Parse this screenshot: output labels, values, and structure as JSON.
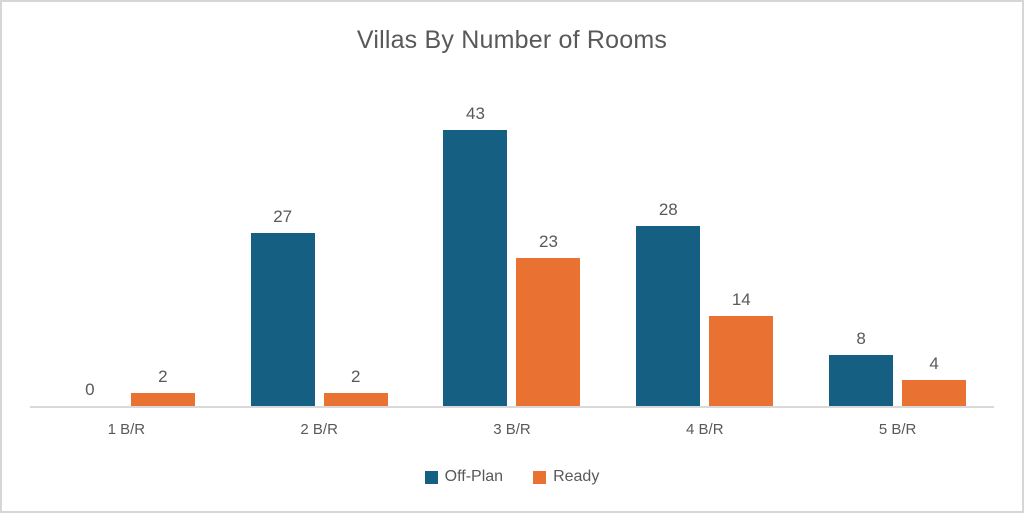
{
  "window": {
    "background": "#ffffff",
    "border_color": "#d6d6d6"
  },
  "chart_data": {
    "type": "bar",
    "title": "Villas By Number of Rooms",
    "categories": [
      "1 B/R",
      "2 B/R",
      "3 B/R",
      "4 B/R",
      "5 B/R"
    ],
    "series": [
      {
        "name": "Off-Plan",
        "color": "#156082",
        "values": [
          0,
          27,
          43,
          28,
          8
        ]
      },
      {
        "name": "Ready",
        "color": "#E97132",
        "values": [
          2,
          2,
          23,
          14,
          4
        ]
      }
    ],
    "ylim": [
      0,
      43
    ],
    "grid": false,
    "data_labels": true,
    "legend_position": "bottom",
    "axis_line_color": "#d9d9d9",
    "text_color": "#595959"
  }
}
